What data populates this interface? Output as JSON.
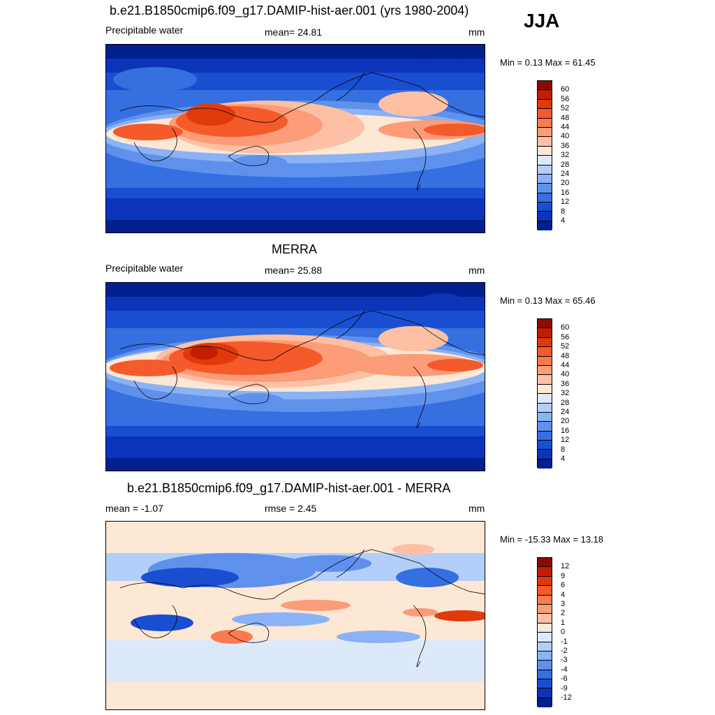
{
  "season": "JJA",
  "panels": [
    {
      "title": "b.e21.B1850cmip6.f09_g17.DAMIP-hist-aer.001 (yrs 1980-2004)",
      "left_label": "Precipitable water",
      "center_label": "mean=  24.81",
      "units": "mm",
      "minmax": "Min =   0.13 Max =  61.45",
      "colorbar_labels": [
        "60",
        "56",
        "52",
        "48",
        "44",
        "40",
        "36",
        "32",
        "28",
        "24",
        "20",
        "16",
        "12",
        "8",
        "4"
      ],
      "colors": [
        "#8c0a00",
        "#c21d00",
        "#e03a0c",
        "#f45a2a",
        "#fb7b4f",
        "#fc9c78",
        "#fdc0a4",
        "#fde7d5",
        "#dce9fb",
        "#b3cff9",
        "#8ab2f5",
        "#5f91ec",
        "#356fe0",
        "#1a4ed1",
        "#0b34b8",
        "#021f90"
      ]
    },
    {
      "title": "MERRA",
      "left_label": "Precipitable water",
      "center_label": "mean=  25.88",
      "units": "mm",
      "minmax": "Min =   0.13 Max =  65.46",
      "colorbar_labels": [
        "60",
        "56",
        "52",
        "48",
        "44",
        "40",
        "36",
        "32",
        "28",
        "24",
        "20",
        "16",
        "12",
        "8",
        "4"
      ],
      "colors": [
        "#8c0a00",
        "#c21d00",
        "#e03a0c",
        "#f45a2a",
        "#fb7b4f",
        "#fc9c78",
        "#fdc0a4",
        "#fde7d5",
        "#dce9fb",
        "#b3cff9",
        "#8ab2f5",
        "#5f91ec",
        "#356fe0",
        "#1a4ed1",
        "#0b34b8",
        "#021f90"
      ]
    },
    {
      "title": "b.e21.B1850cmip6.f09_g17.DAMIP-hist-aer.001 - MERRA",
      "left_label": "mean =  -1.07",
      "center_label": "rmse =   2.45",
      "units": "mm",
      "minmax": "Min = -15.33 Max =  13.18",
      "colorbar_labels": [
        "12",
        "9",
        "6",
        "4",
        "3",
        "2",
        "1",
        "0",
        "-1",
        "-2",
        "-3",
        "-4",
        "-6",
        "-9",
        "-12"
      ],
      "colors": [
        "#8c0a00",
        "#c21d00",
        "#e03a0c",
        "#f45a2a",
        "#fb7b4f",
        "#fc9c78",
        "#fdc0a4",
        "#fde7d5",
        "#dce9fb",
        "#b3cff9",
        "#8ab2f5",
        "#5f91ec",
        "#356fe0",
        "#1a4ed1",
        "#0b34b8",
        "#021f90"
      ]
    }
  ]
}
